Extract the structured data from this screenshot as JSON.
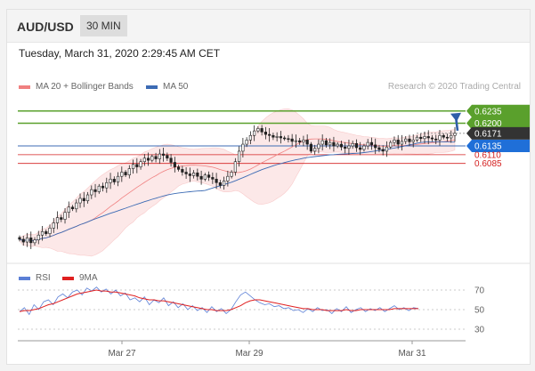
{
  "header": {
    "symbol": "AUD/USD",
    "timeframe": "30 MIN"
  },
  "datetime": "Tuesday, March 31, 2020 2:29:45 AM CET",
  "legend": {
    "ma20_label": "MA 20 + Bollinger Bands",
    "ma50_label": "MA 50",
    "credit": "Research © 2020 Trading Central",
    "rsi_label": "RSI",
    "ma9_label": "9MA"
  },
  "colors": {
    "ma20": "#f08080",
    "ma50": "#3c6bb4",
    "rsi": "#5b7fd6",
    "ma9": "#e02020",
    "support": "#3c6bb4",
    "resistance": "#5aa02c",
    "target": "#d42020"
  },
  "chart_data": [
    {
      "type": "candlestick",
      "title": "AUD/USD 30 MIN",
      "x_ticks": [
        "Mar 27",
        "Mar 29",
        "Mar 31"
      ],
      "ylim": [
        0.585,
        0.627
      ],
      "levels": [
        {
          "value": 0.6235,
          "label": "0.6235",
          "kind": "resistance"
        },
        {
          "value": 0.62,
          "label": "0.6200",
          "kind": "resistance"
        },
        {
          "value": 0.6171,
          "label": "0.6171",
          "kind": "last"
        },
        {
          "value": 0.6135,
          "label": "0.6135",
          "kind": "pivot"
        },
        {
          "value": 0.611,
          "label": "0.6110",
          "kind": "support"
        },
        {
          "value": 0.6085,
          "label": "0.6085",
          "kind": "support"
        }
      ],
      "series": [
        {
          "name": "MA 20 + Bollinger Bands"
        },
        {
          "name": "MA 50"
        }
      ],
      "closes": [
        0.5868,
        0.586,
        0.5872,
        0.5858,
        0.5866,
        0.588,
        0.589,
        0.5884,
        0.59,
        0.5915,
        0.593,
        0.5925,
        0.5945,
        0.596,
        0.5955,
        0.5972,
        0.5985,
        0.5978,
        0.5995,
        0.601,
        0.6004,
        0.602,
        0.6015,
        0.603,
        0.604,
        0.6032,
        0.6048,
        0.606,
        0.6052,
        0.607,
        0.6082,
        0.6075,
        0.609,
        0.61,
        0.6094,
        0.6105,
        0.6098,
        0.6112,
        0.6108,
        0.61,
        0.6088,
        0.6075,
        0.6068,
        0.606,
        0.6055,
        0.605,
        0.6058,
        0.6048,
        0.604,
        0.6052,
        0.6045,
        0.604,
        0.603,
        0.6022,
        0.6035,
        0.6048,
        0.606,
        0.609,
        0.612,
        0.614,
        0.6152,
        0.6165,
        0.6178,
        0.6185,
        0.6175,
        0.6168,
        0.6165,
        0.616,
        0.6162,
        0.6158,
        0.6156,
        0.6155,
        0.6148,
        0.615,
        0.6146,
        0.6152,
        0.614,
        0.612,
        0.6128,
        0.614,
        0.615,
        0.6138,
        0.6145,
        0.6135,
        0.614,
        0.6132,
        0.6128,
        0.6135,
        0.6142,
        0.613,
        0.6125,
        0.6135,
        0.6145,
        0.6138,
        0.613,
        0.6125,
        0.612,
        0.6132,
        0.6145,
        0.6152,
        0.614,
        0.6148,
        0.6155,
        0.6147,
        0.6152,
        0.616,
        0.6156,
        0.6162,
        0.6158,
        0.6155,
        0.6152,
        0.6165,
        0.616,
        0.6158,
        0.6165,
        0.6171
      ]
    },
    {
      "type": "line",
      "title": "RSI",
      "ylim": [
        20,
        80
      ],
      "y_ticks": [
        70,
        50,
        30
      ],
      "series": [
        {
          "name": "RSI",
          "values": [
            48,
            52,
            45,
            55,
            50,
            58,
            60,
            55,
            63,
            66,
            62,
            68,
            70,
            65,
            72,
            69,
            73,
            68,
            71,
            66,
            70,
            64,
            67,
            60,
            62,
            58,
            63,
            55,
            60,
            57,
            62,
            54,
            58,
            52,
            56,
            50,
            54,
            49,
            52,
            47,
            53,
            48,
            51,
            46,
            50,
            58,
            65,
            68,
            64,
            60,
            57,
            55,
            56,
            53,
            54,
            51,
            52,
            49,
            50,
            47,
            51,
            48,
            52,
            49,
            50,
            46,
            51,
            48,
            53,
            47,
            50,
            52,
            48,
            51,
            49,
            52,
            48,
            51,
            54,
            50,
            52,
            49,
            52,
            51
          ]
        },
        {
          "name": "9MA",
          "values": [
            48,
            49,
            49,
            50,
            51,
            53,
            55,
            56,
            58,
            60,
            62,
            64,
            66,
            67,
            68,
            69,
            70,
            69,
            69,
            68,
            68,
            67,
            66,
            65,
            64,
            62,
            61,
            60,
            60,
            59,
            59,
            58,
            57,
            56,
            55,
            54,
            53,
            52,
            51,
            50,
            50,
            49,
            49,
            49,
            50,
            52,
            54,
            57,
            59,
            60,
            60,
            59,
            58,
            57,
            56,
            55,
            54,
            53,
            52,
            51,
            51,
            50,
            50,
            50,
            49,
            49,
            49,
            49,
            50,
            49,
            49,
            50,
            50,
            50,
            50,
            50,
            50,
            50,
            51,
            51,
            51,
            51,
            51,
            51
          ]
        }
      ]
    }
  ]
}
